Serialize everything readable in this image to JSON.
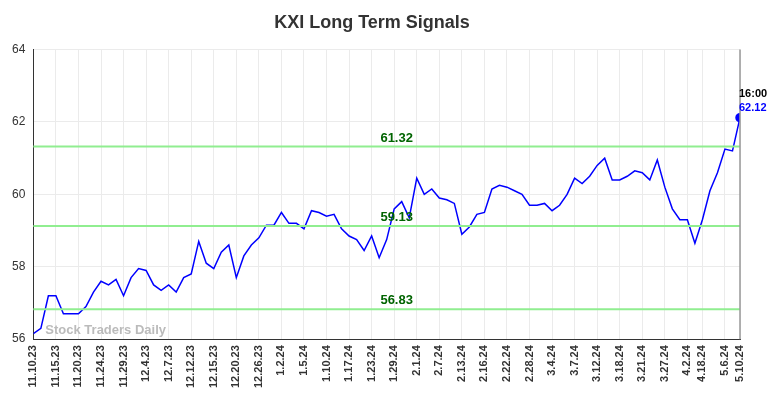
{
  "chart_data": {
    "type": "line",
    "title": "KXI Long Term Signals",
    "watermark": "Stock Traders Daily",
    "color": "#0000ff",
    "grid": true,
    "ylim": [
      56,
      64
    ],
    "yticks": [
      56,
      58,
      60,
      62,
      64
    ],
    "categories": [
      "11.10.23",
      null,
      null,
      "11.15.23",
      null,
      null,
      "11.20.23",
      null,
      null,
      "11.24.23",
      null,
      null,
      "11.29.23",
      null,
      null,
      "12.4.23",
      null,
      null,
      "12.7.23",
      null,
      null,
      "12.12.23",
      null,
      null,
      "12.15.23",
      null,
      null,
      "12.20.23",
      null,
      null,
      "12.26.23",
      null,
      null,
      "1.2.24",
      null,
      null,
      "1.5.24",
      null,
      null,
      "1.10.24",
      null,
      null,
      "1.17.24",
      null,
      null,
      "1.23.24",
      null,
      null,
      "1.29.24",
      null,
      null,
      "2.1.24",
      null,
      null,
      "2.7.24",
      null,
      null,
      "2.13.24",
      null,
      null,
      "2.16.24",
      null,
      null,
      "2.22.24",
      null,
      null,
      "2.28.24",
      null,
      null,
      "3.4.24",
      null,
      null,
      "3.7.24",
      null,
      null,
      "3.12.24",
      null,
      null,
      "3.18.24",
      null,
      null,
      "3.21.24",
      null,
      null,
      "3.27.24",
      null,
      null,
      "4.2.24",
      null,
      "4.18.24",
      null,
      null,
      "5.6.24",
      null,
      "5.10.24"
    ],
    "values": [
      56.15,
      56.3,
      57.2,
      57.2,
      56.7,
      56.7,
      56.7,
      56.9,
      57.3,
      57.6,
      57.5,
      57.65,
      57.2,
      57.7,
      57.95,
      57.9,
      57.5,
      57.35,
      57.5,
      57.3,
      57.7,
      57.8,
      58.7,
      58.1,
      57.95,
      58.4,
      58.6,
      57.7,
      58.3,
      58.6,
      58.8,
      59.15,
      59.15,
      59.5,
      59.2,
      59.2,
      59.05,
      59.55,
      59.5,
      59.4,
      59.45,
      59.05,
      58.85,
      58.75,
      58.45,
      58.85,
      58.25,
      58.75,
      59.6,
      59.8,
      59.35,
      60.45,
      60.0,
      60.15,
      59.9,
      59.85,
      59.75,
      58.9,
      59.1,
      59.45,
      59.5,
      60.15,
      60.25,
      60.2,
      60.1,
      60.0,
      59.7,
      59.7,
      59.75,
      59.55,
      59.7,
      60.0,
      60.45,
      60.3,
      60.5,
      60.8,
      61.0,
      60.4,
      60.4,
      60.5,
      60.65,
      60.6,
      60.4,
      60.95,
      60.2,
      59.6,
      59.3,
      59.3,
      58.65,
      59.3,
      60.1,
      60.6,
      61.25,
      61.2,
      62.12
    ],
    "annotations": [
      {
        "value": 61.32,
        "label": "61.32",
        "color": "#90ee90"
      },
      {
        "value": 59.13,
        "label": "59.13",
        "color": "#90ee90"
      },
      {
        "value": 56.83,
        "label": "56.83",
        "color": "#90ee90"
      }
    ],
    "last_point": {
      "time": "16:00",
      "value": 62.12
    }
  }
}
